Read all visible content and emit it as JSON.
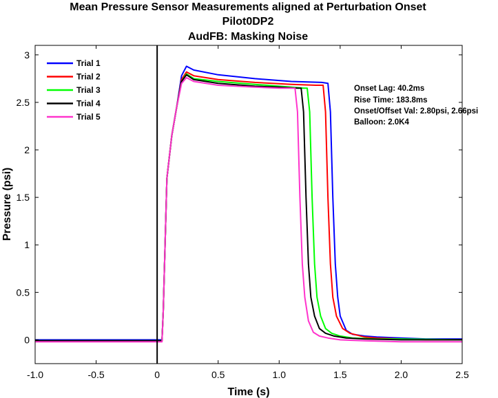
{
  "chart_data": {
    "type": "line",
    "title": [
      "Mean Pressure Sensor Measurements aligned at Perturbation Onset",
      "Pilot0DP2",
      "AudFB: Masking Noise"
    ],
    "xlabel": "Time (s)",
    "ylabel": "Pressure (psi)",
    "xlim": [
      -1.0,
      2.5
    ],
    "ylim": [
      -0.25,
      3.1
    ],
    "xticks": [
      -1.0,
      -0.5,
      0,
      0.5,
      1.0,
      1.5,
      2.0,
      2.5
    ],
    "xtick_labels": [
      "-1.0",
      "-0.5",
      "0",
      "0.5",
      "1.0",
      "1.5",
      "2.0",
      "2.5"
    ],
    "yticks": [
      0,
      0.5,
      1,
      1.5,
      2,
      2.5,
      3
    ],
    "ytick_labels": [
      "0",
      "0.5",
      "1",
      "1.5",
      "2",
      "2.5",
      "3"
    ],
    "grid": false,
    "legend_position": "top-left",
    "onset_marker_x": 0,
    "annotations": [
      "Onset Lag: 40.2ms",
      "Rise Time: 183.8ms",
      "Onset/Offset Val: 2.80psi, 2.66psi",
      "Balloon: 2.0K4"
    ],
    "series": [
      {
        "name": "Trial 1",
        "color": "#0000ff",
        "x": [
          -1.0,
          0.04,
          0.05,
          0.08,
          0.12,
          0.16,
          0.2,
          0.24,
          0.3,
          0.5,
          0.8,
          1.1,
          1.35,
          1.4,
          1.42,
          1.44,
          1.46,
          1.48,
          1.5,
          1.55,
          1.6,
          1.7,
          1.8,
          2.0,
          2.2,
          2.5
        ],
        "y": [
          0.0,
          0.0,
          0.3,
          1.7,
          2.15,
          2.45,
          2.78,
          2.88,
          2.84,
          2.79,
          2.75,
          2.72,
          2.71,
          2.7,
          2.4,
          1.5,
          0.8,
          0.45,
          0.25,
          0.1,
          0.06,
          0.04,
          0.03,
          0.02,
          0.01,
          0.01
        ]
      },
      {
        "name": "Trial 2",
        "color": "#ff0000",
        "x": [
          -1.0,
          0.04,
          0.05,
          0.08,
          0.12,
          0.16,
          0.2,
          0.24,
          0.3,
          0.5,
          0.8,
          1.1,
          1.3,
          1.36,
          1.38,
          1.4,
          1.42,
          1.44,
          1.47,
          1.52,
          1.58,
          1.7,
          1.8,
          2.0,
          2.2,
          2.5
        ],
        "y": [
          -0.01,
          -0.01,
          0.3,
          1.7,
          2.15,
          2.45,
          2.74,
          2.82,
          2.78,
          2.74,
          2.71,
          2.69,
          2.68,
          2.68,
          2.4,
          1.5,
          0.8,
          0.45,
          0.25,
          0.12,
          0.07,
          0.03,
          0.02,
          0.01,
          0.0,
          0.0
        ]
      },
      {
        "name": "Trial 3",
        "color": "#00ff00",
        "x": [
          -1.0,
          0.04,
          0.05,
          0.08,
          0.12,
          0.16,
          0.2,
          0.24,
          0.3,
          0.5,
          0.8,
          1.1,
          1.2,
          1.23,
          1.25,
          1.27,
          1.29,
          1.31,
          1.34,
          1.38,
          1.43,
          1.5,
          1.6,
          1.8,
          2.0,
          2.5
        ],
        "y": [
          -0.01,
          -0.01,
          0.3,
          1.7,
          2.15,
          2.45,
          2.72,
          2.8,
          2.75,
          2.72,
          2.69,
          2.66,
          2.65,
          2.65,
          2.4,
          1.5,
          0.8,
          0.45,
          0.25,
          0.12,
          0.07,
          0.04,
          0.02,
          0.01,
          0.01,
          0.0
        ]
      },
      {
        "name": "Trial 4",
        "color": "#000000",
        "x": [
          -1.0,
          0.04,
          0.05,
          0.08,
          0.12,
          0.16,
          0.2,
          0.24,
          0.3,
          0.5,
          0.8,
          1.0,
          1.15,
          1.18,
          1.2,
          1.22,
          1.24,
          1.26,
          1.29,
          1.33,
          1.38,
          1.45,
          1.55,
          1.7,
          2.0,
          2.5
        ],
        "y": [
          -0.01,
          -0.01,
          0.3,
          1.7,
          2.15,
          2.45,
          2.72,
          2.79,
          2.74,
          2.7,
          2.67,
          2.66,
          2.65,
          2.65,
          2.4,
          1.5,
          0.8,
          0.45,
          0.25,
          0.12,
          0.07,
          0.04,
          0.02,
          0.01,
          0.0,
          0.0
        ]
      },
      {
        "name": "Trial 5",
        "color": "#ff33cc",
        "x": [
          -1.0,
          0.04,
          0.05,
          0.08,
          0.12,
          0.16,
          0.2,
          0.24,
          0.3,
          0.5,
          0.8,
          1.0,
          1.1,
          1.13,
          1.15,
          1.17,
          1.19,
          1.21,
          1.24,
          1.28,
          1.33,
          1.4,
          1.5,
          1.7,
          2.0,
          2.5
        ],
        "y": [
          -0.02,
          -0.02,
          0.3,
          1.7,
          2.15,
          2.45,
          2.7,
          2.76,
          2.72,
          2.68,
          2.66,
          2.65,
          2.65,
          2.65,
          2.4,
          1.5,
          0.8,
          0.45,
          0.2,
          0.08,
          0.04,
          0.02,
          0.0,
          -0.01,
          -0.02,
          -0.02
        ]
      }
    ]
  }
}
